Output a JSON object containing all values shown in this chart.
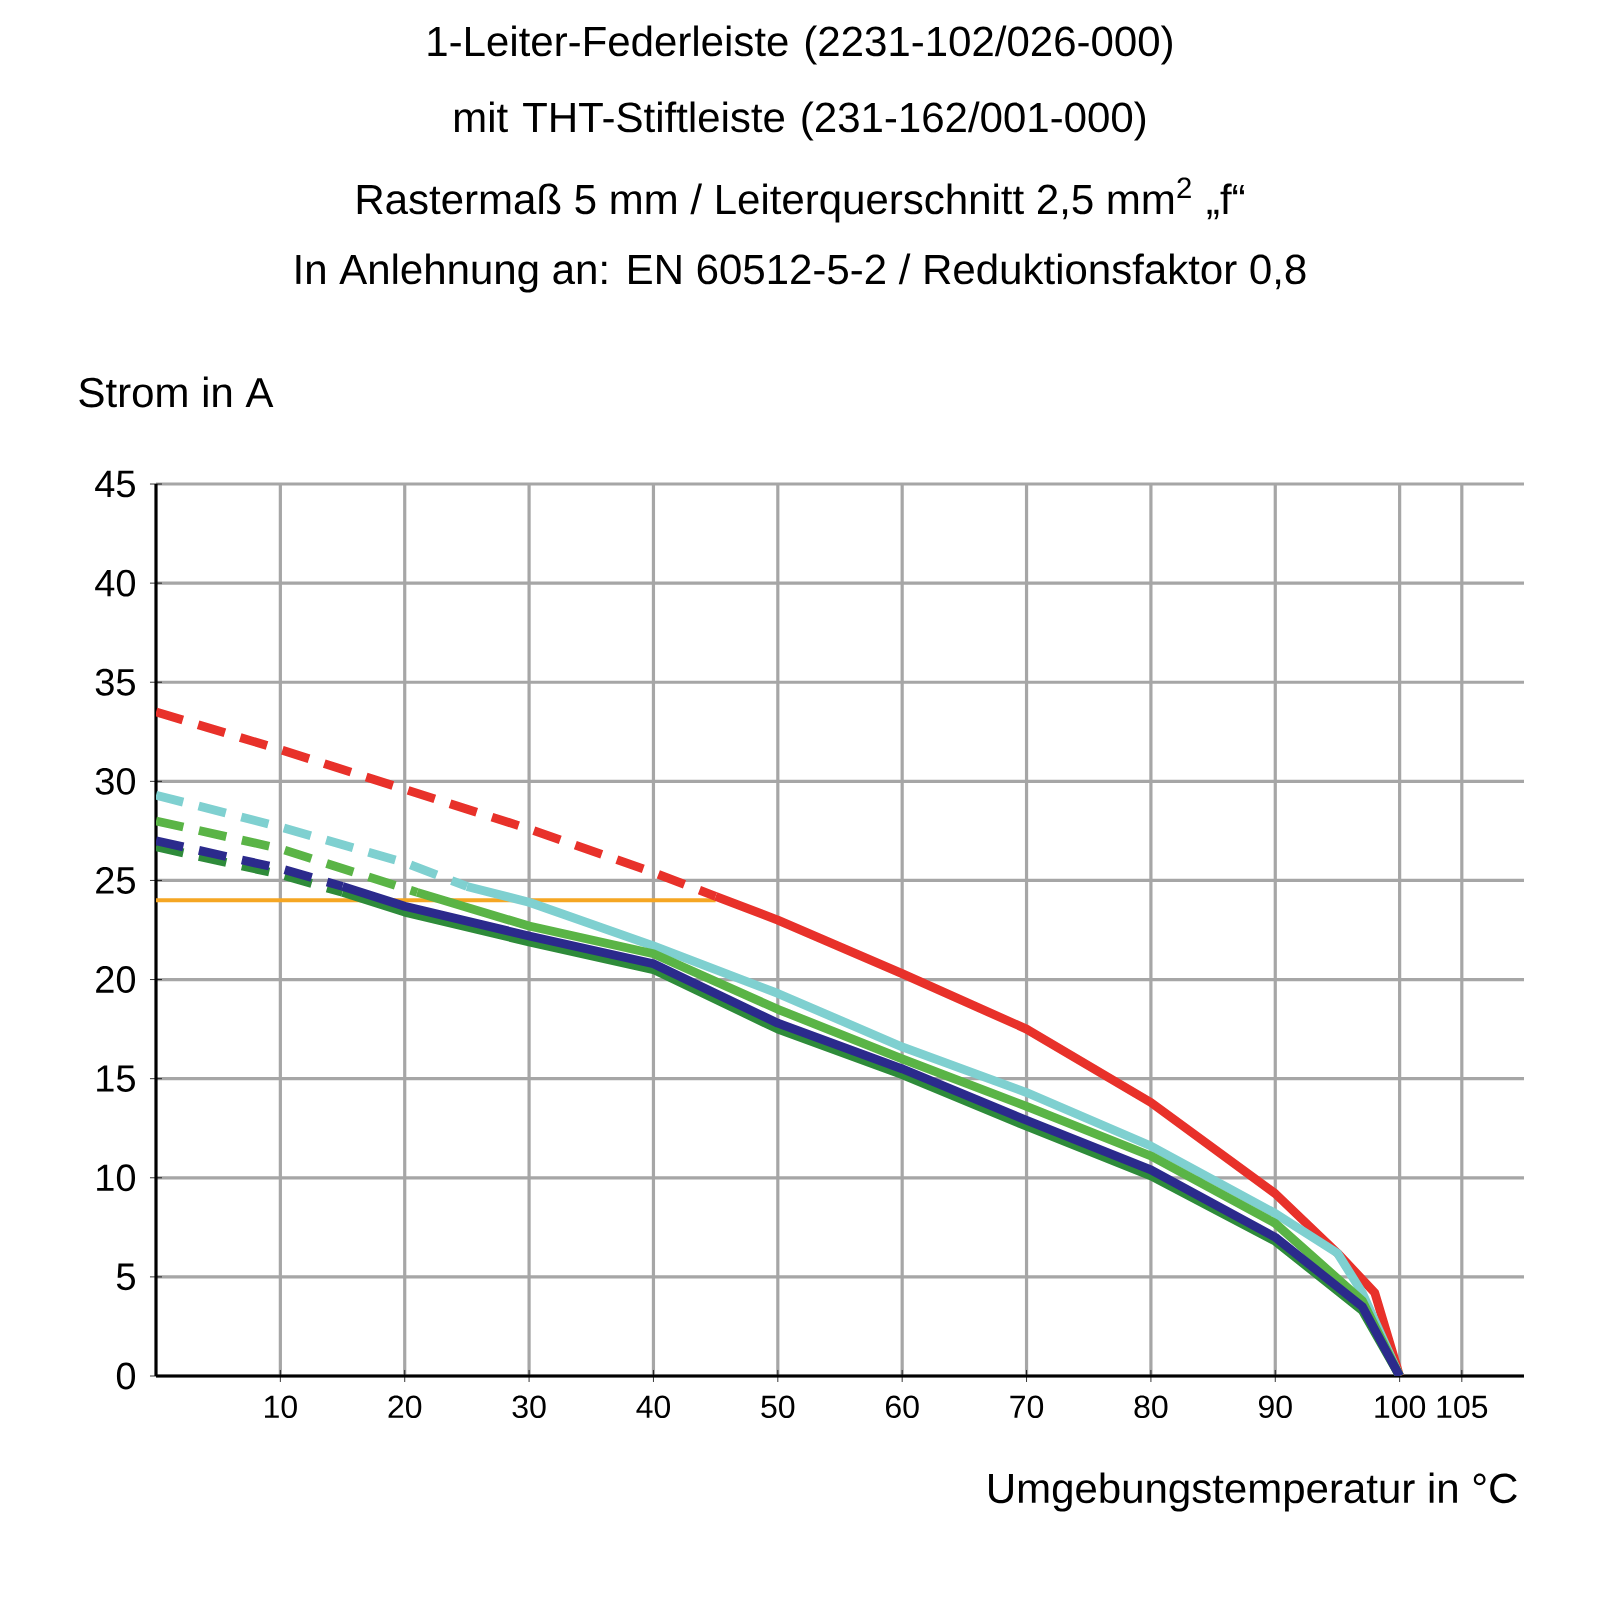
{
  "chart_data": {
    "type": "line",
    "title": "1-Leiter-Federleiste (2231-102/026-000) mit THT-Stiftleiste (231-162/001-000)",
    "subtitle": "Rastermaß 5 mm / Leiterquerschnitt 2,5 mm$^{2}$ „f“",
    "annotations": [
      "In Anlehnung an: EN 60512-5-2 / Reduktionsfaktor 0,8"
    ],
    "xlabel": "Umgebungstemperatur in °C",
    "ylabel": "Strom in A",
    "xlim": [
      0,
      110
    ],
    "ylim": [
      0,
      45
    ],
    "xticks": [
      10,
      20,
      30,
      40,
      50,
      60,
      70,
      80,
      90,
      100,
      105
    ],
    "yticks": [
      0,
      5,
      10,
      15,
      20,
      25,
      30,
      35,
      40,
      45
    ],
    "grid": true,
    "marker": "none",
    "series": [
      {
        "color": "#f5a623",
        "line_style": "solid",
        "x": [
          0,
          45
        ],
        "values": [
          24,
          24
        ]
      },
      {
        "color": "#e8312a",
        "line_style": "dashed",
        "x": [
          0,
          10,
          20,
          30,
          40,
          45
        ],
        "values": [
          33.5,
          31.6,
          29.6,
          27.6,
          25.4,
          24.2
        ]
      },
      {
        "color": "#e8312a",
        "line_style": "solid",
        "x": [
          45,
          50,
          60,
          70,
          80,
          90,
          95,
          98,
          100
        ],
        "values": [
          24.2,
          23.0,
          20.3,
          17.5,
          13.8,
          9.2,
          6.2,
          4.2,
          0
        ]
      },
      {
        "color": "#7fd0d0",
        "line_style": "dashed",
        "x": [
          0,
          10,
          20,
          25
        ],
        "values": [
          29.3,
          27.7,
          25.9,
          24.7
        ]
      },
      {
        "color": "#7fd0d0",
        "line_style": "solid",
        "x": [
          25,
          30,
          40,
          50,
          60,
          70,
          80,
          90,
          95,
          97,
          100
        ],
        "values": [
          24.7,
          23.9,
          21.7,
          19.3,
          16.6,
          14.3,
          11.6,
          8.2,
          6.2,
          4.2,
          0
        ]
      },
      {
        "color": "#5ab446",
        "line_style": "dashed",
        "x": [
          0,
          10,
          21
        ],
        "values": [
          28.0,
          26.6,
          24.4
        ]
      },
      {
        "color": "#5ab446",
        "line_style": "solid",
        "x": [
          21,
          30,
          40,
          50,
          60,
          70,
          80,
          90,
          97,
          100
        ],
        "values": [
          24.4,
          22.7,
          21.3,
          18.5,
          16.0,
          13.6,
          11.1,
          7.7,
          3.8,
          0
        ]
      },
      {
        "color": "#2e8b3a",
        "line_style": "dashed",
        "x": [
          0,
          10,
          15
        ],
        "values": [
          26.7,
          25.3,
          24.4
        ]
      },
      {
        "color": "#2e8b3a",
        "line_style": "solid",
        "x": [
          15,
          20,
          30,
          40,
          50,
          60,
          70,
          80,
          90,
          97,
          100
        ],
        "values": [
          24.4,
          23.4,
          21.9,
          20.5,
          17.5,
          15.2,
          12.6,
          10.1,
          6.8,
          3.3,
          0
        ]
      },
      {
        "color": "#2b2a8c",
        "line_style": "dashed",
        "x": [
          0,
          10,
          15
        ],
        "values": [
          27.0,
          25.6,
          24.7
        ]
      },
      {
        "color": "#2b2a8c",
        "line_style": "solid",
        "x": [
          15,
          20,
          30,
          40,
          50,
          60,
          70,
          80,
          90,
          97,
          100
        ],
        "values": [
          24.7,
          23.7,
          22.2,
          20.8,
          17.8,
          15.5,
          12.9,
          10.4,
          7.0,
          3.5,
          0
        ]
      }
    ]
  }
}
